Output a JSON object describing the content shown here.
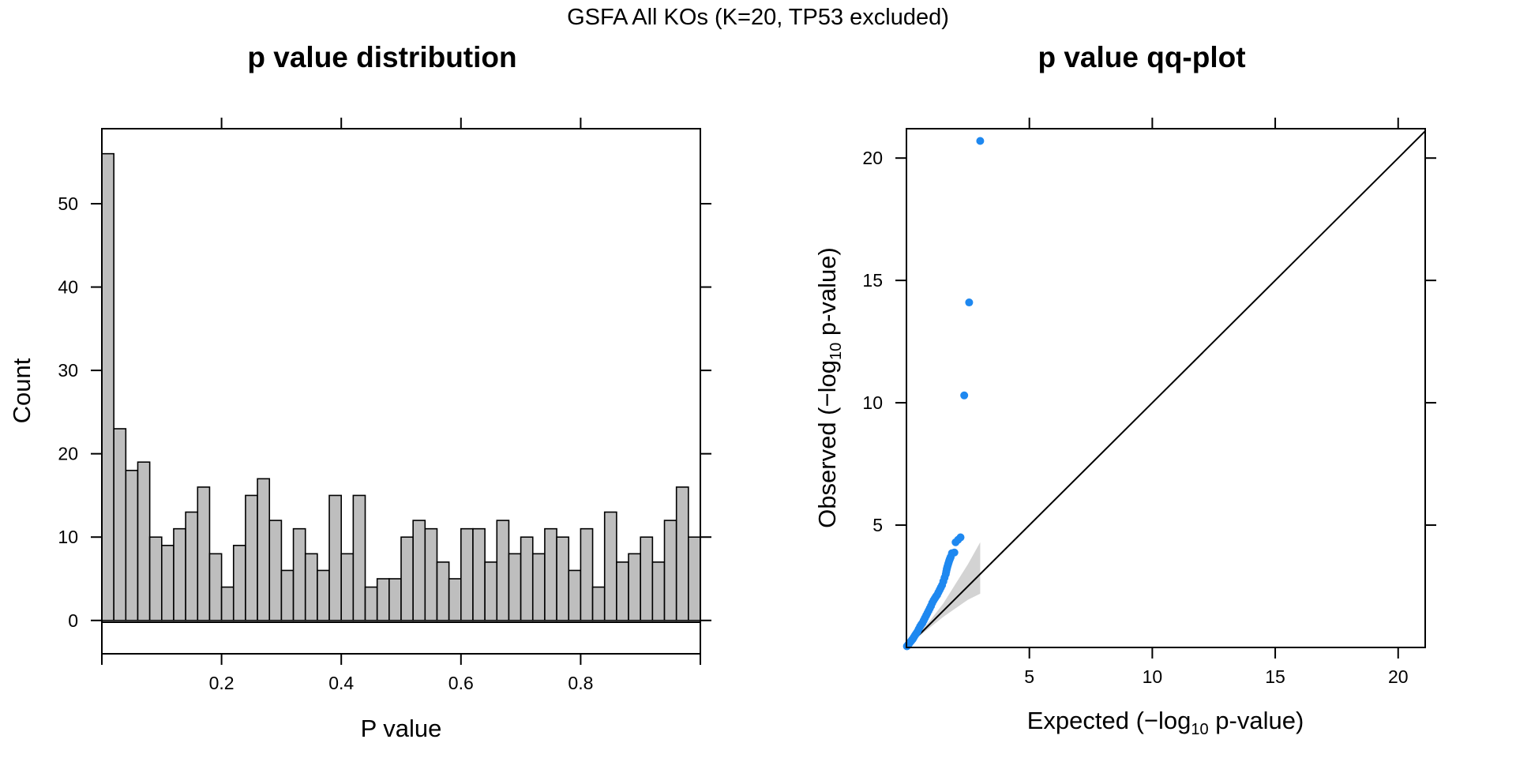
{
  "figure_title": "GSFA All KOs (K=20, TP53 excluded)",
  "chart_data": [
    {
      "type": "bar",
      "title": "p value distribution",
      "xlabel": "P value",
      "ylabel": "Count",
      "bin_width": 0.02,
      "x_bin_starts": [
        0.0,
        0.02,
        0.04,
        0.06,
        0.08,
        0.1,
        0.12,
        0.14,
        0.16,
        0.18,
        0.2,
        0.22,
        0.24,
        0.26,
        0.28,
        0.3,
        0.32,
        0.34,
        0.36,
        0.38,
        0.4,
        0.42,
        0.44,
        0.46,
        0.48,
        0.5,
        0.52,
        0.54,
        0.56,
        0.58,
        0.6,
        0.62,
        0.64,
        0.66,
        0.68,
        0.7,
        0.72,
        0.74,
        0.76,
        0.78,
        0.8,
        0.82,
        0.84,
        0.86,
        0.88,
        0.9,
        0.92,
        0.94,
        0.96,
        0.98
      ],
      "values": [
        56,
        23,
        18,
        19,
        10,
        9,
        11,
        13,
        16,
        8,
        4,
        9,
        15,
        17,
        12,
        6,
        11,
        8,
        6,
        15,
        8,
        15,
        4,
        5,
        5,
        10,
        12,
        11,
        7,
        5,
        11,
        11,
        7,
        12,
        8,
        10,
        8,
        11,
        10,
        6,
        11,
        4,
        13,
        7,
        8,
        10,
        7,
        12,
        16,
        10
      ],
      "xlim": [
        0,
        1
      ],
      "ylim": [
        -4,
        59
      ],
      "xticks": [
        "0.2",
        "0.4",
        "0.6",
        "0.8"
      ],
      "yticks": [
        "0",
        "10",
        "20",
        "30",
        "40",
        "50"
      ],
      "bar_color": "#bebebe",
      "grid": false
    },
    {
      "type": "scatter",
      "title": "p value qq-plot",
      "xlabel_prefix": "Expected (",
      "xlabel_sign": "−",
      "xlabel_log": "log",
      "xlabel_sub": "10",
      "xlabel_suffix": " p-value)",
      "ylabel_prefix": "Observed (",
      "ylabel_sign": "−",
      "ylabel_log": "log",
      "ylabel_sub": "10",
      "ylabel_suffix": " p-value)",
      "xlim": [
        0,
        21.1
      ],
      "ylim": [
        0,
        21.2
      ],
      "xticks": [
        "5",
        "10",
        "15",
        "20"
      ],
      "yticks": [
        "5",
        "10",
        "15",
        "20"
      ],
      "point_color": "#1e88f0",
      "band_color": "#d3d3d3",
      "reference_line": "y = x",
      "points": {
        "x": [
          0.02,
          0.06,
          0.1,
          0.14,
          0.18,
          0.22,
          0.26,
          0.3,
          0.35,
          0.4,
          0.45,
          0.5,
          0.55,
          0.6,
          0.65,
          0.7,
          0.75,
          0.8,
          0.85,
          0.9,
          0.95,
          1.0,
          1.05,
          1.1,
          1.15,
          1.2,
          1.25,
          1.3,
          1.35,
          1.4,
          1.45,
          1.5,
          1.55,
          1.6,
          1.62,
          1.64,
          1.66,
          1.68,
          1.7,
          1.72,
          1.74,
          1.76,
          1.78,
          1.8,
          1.85,
          1.95,
          2.0,
          2.1,
          2.2,
          2.35,
          2.55,
          3.0
        ],
        "y": [
          0.05,
          0.1,
          0.15,
          0.2,
          0.25,
          0.3,
          0.35,
          0.42,
          0.5,
          0.57,
          0.65,
          0.75,
          0.85,
          0.93,
          1.0,
          1.1,
          1.2,
          1.3,
          1.4,
          1.5,
          1.6,
          1.7,
          1.82,
          1.92,
          2.0,
          2.08,
          2.15,
          2.25,
          2.35,
          2.45,
          2.55,
          2.7,
          2.85,
          3.0,
          3.1,
          3.2,
          3.28,
          3.35,
          3.42,
          3.48,
          3.55,
          3.6,
          3.65,
          3.7,
          3.85,
          3.88,
          4.3,
          4.4,
          4.5,
          10.3,
          14.1,
          20.7
        ]
      },
      "band_upper": [
        [
          0.0,
          0.0
        ],
        [
          0.5,
          0.55
        ],
        [
          1.0,
          1.15
        ],
        [
          1.5,
          1.8
        ],
        [
          2.0,
          2.6
        ],
        [
          2.5,
          3.4
        ],
        [
          3.0,
          4.3
        ]
      ],
      "band_lower": [
        [
          0.0,
          0.0
        ],
        [
          0.5,
          0.45
        ],
        [
          1.0,
          0.85
        ],
        [
          1.5,
          1.25
        ],
        [
          2.0,
          1.6
        ],
        [
          2.5,
          1.95
        ],
        [
          3.0,
          2.2
        ]
      ]
    }
  ]
}
